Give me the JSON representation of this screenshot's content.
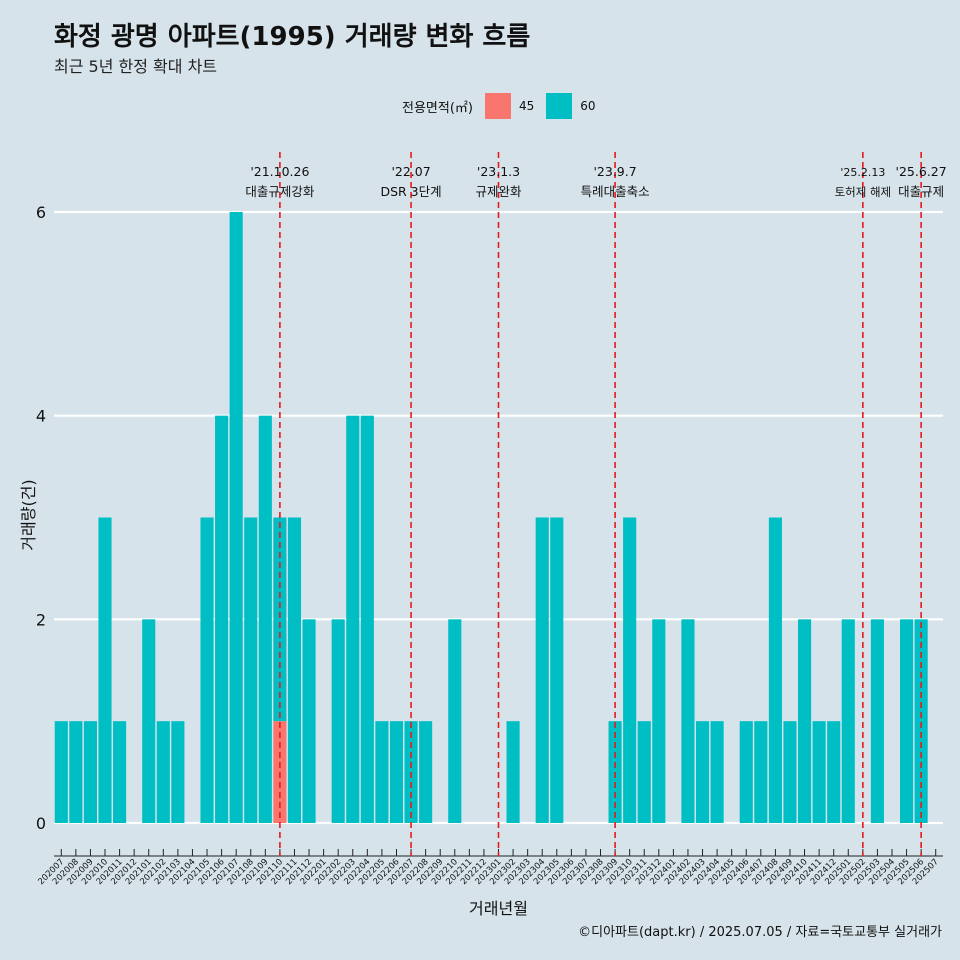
{
  "title": "화정 광명 아파트(1995) 거래량 변화 흐름",
  "subtitle": "최근 5년 한정 확대 차트",
  "caption": "©디아파트(dapt.kr) / 2025.07.05 / 자료=국토교통부 실거래가",
  "legend": {
    "title": "전용면적(㎡)",
    "items": [
      {
        "label": "45",
        "color": "#f8766d"
      },
      {
        "label": "60",
        "color": "#00bfc4"
      }
    ]
  },
  "colors": {
    "background": "#d6e3ea",
    "grid": "#ffffff",
    "event_line": "#e8191b"
  },
  "chart_data": {
    "type": "bar",
    "xlabel": "거래년월",
    "ylabel": "거래량(건)",
    "ylim": [
      0,
      6
    ],
    "yticks": [
      0,
      2,
      4,
      6
    ],
    "categories": [
      "202007",
      "202008",
      "202009",
      "202010",
      "202011",
      "202012",
      "202101",
      "202102",
      "202103",
      "202104",
      "202105",
      "202106",
      "202107",
      "202108",
      "202109",
      "202110",
      "202111",
      "202112",
      "202201",
      "202202",
      "202203",
      "202204",
      "202205",
      "202206",
      "202207",
      "202208",
      "202209",
      "202210",
      "202211",
      "202212",
      "202301",
      "202302",
      "202303",
      "202304",
      "202305",
      "202306",
      "202307",
      "202308",
      "202309",
      "202310",
      "202311",
      "202312",
      "202401",
      "202402",
      "202403",
      "202404",
      "202405",
      "202406",
      "202407",
      "202408",
      "202409",
      "202410",
      "202411",
      "202412",
      "202501",
      "202502",
      "202503",
      "202504",
      "202505",
      "202506",
      "202507"
    ],
    "series": [
      {
        "name": "45",
        "color": "#f8766d",
        "values": [
          0,
          0,
          0,
          0,
          0,
          0,
          0,
          0,
          0,
          0,
          0,
          0,
          0,
          0,
          0,
          1,
          0,
          0,
          0,
          0,
          0,
          0,
          0,
          0,
          0,
          0,
          0,
          0,
          0,
          0,
          0,
          0,
          0,
          0,
          0,
          0,
          0,
          0,
          0,
          0,
          0,
          0,
          0,
          0,
          0,
          0,
          0,
          0,
          0,
          0,
          0,
          0,
          0,
          0,
          0,
          0,
          0,
          0,
          0,
          0,
          0
        ]
      },
      {
        "name": "60",
        "color": "#00bfc4",
        "values": [
          1,
          1,
          1,
          3,
          1,
          0,
          2,
          1,
          1,
          0,
          3,
          4,
          6,
          3,
          4,
          2,
          3,
          2,
          0,
          2,
          4,
          4,
          1,
          1,
          1,
          1,
          0,
          2,
          0,
          0,
          0,
          1,
          0,
          3,
          3,
          0,
          0,
          0,
          1,
          3,
          1,
          2,
          0,
          2,
          1,
          1,
          0,
          1,
          1,
          3,
          1,
          2,
          1,
          1,
          2,
          0,
          2,
          0,
          2,
          2,
          0
        ]
      }
    ],
    "events": [
      {
        "date": "'21.10.26",
        "label": "대출규제강화",
        "index": 15
      },
      {
        "date": "'22.07",
        "label": "DSR 3단계",
        "index": 24
      },
      {
        "date": "'23.1.3",
        "label": "규제완화",
        "index": 30
      },
      {
        "date": "'23.9.7",
        "label": "특례대출축소",
        "index": 38
      },
      {
        "date": "'25.2.13",
        "label": "토허제 해제",
        "index": 55
      },
      {
        "date": "'25.6.27",
        "label": "대출규제",
        "index": 59
      }
    ]
  }
}
